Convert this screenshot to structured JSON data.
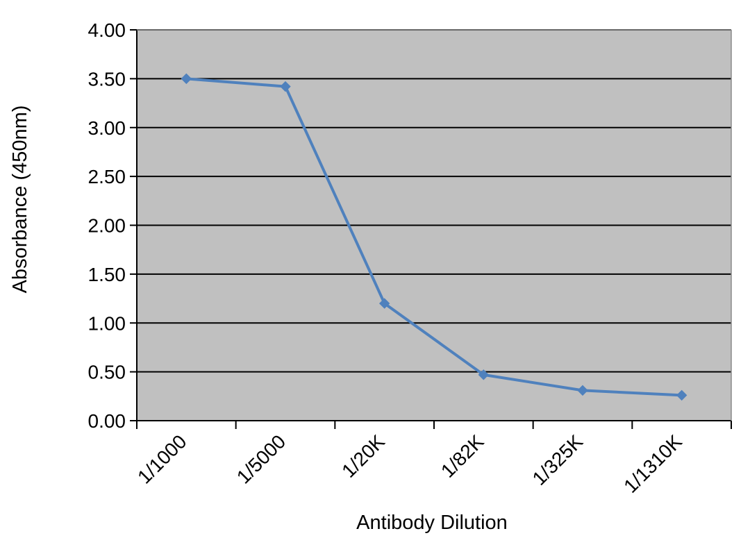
{
  "chart_data": {
    "type": "line",
    "title": "",
    "xlabel": "Antibody Dilution",
    "ylabel": "Absorbance (450nm)",
    "categories": [
      "1/1000",
      "1/5000",
      "1/20K",
      "1/82K",
      "1/325K",
      "1/1310K"
    ],
    "series": [
      {
        "values": [
          3.5,
          3.42,
          1.2,
          0.47,
          0.31,
          0.26
        ]
      }
    ],
    "ylim": [
      0,
      4
    ],
    "yticks": [
      "0.00",
      "0.50",
      "1.00",
      "1.50",
      "2.00",
      "2.50",
      "3.00",
      "3.50",
      "4.00"
    ],
    "grid": "horizontal",
    "legend": "none",
    "colors": {
      "plot_background": "#c0c0c0",
      "series": "#4f81bd",
      "grid": "#000000"
    }
  }
}
